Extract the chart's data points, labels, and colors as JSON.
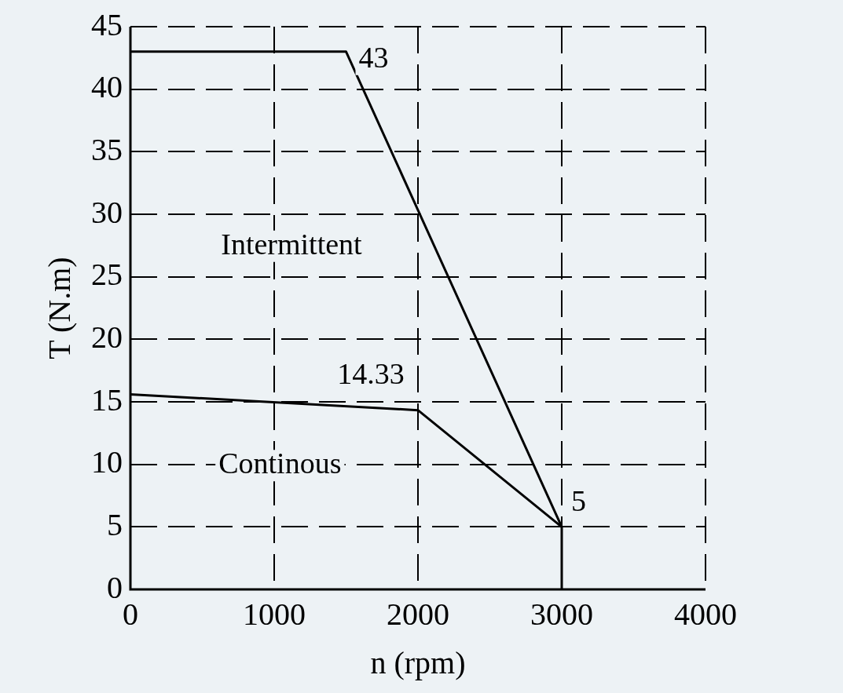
{
  "chart_data": {
    "type": "line",
    "xlabel": "n (rpm)",
    "ylabel": "T (N.m)",
    "xlim": [
      0,
      4000
    ],
    "xticks": [
      0,
      1000,
      2000,
      3000,
      4000
    ],
    "ylim": [
      0,
      45
    ],
    "yticks": [
      0,
      5,
      10,
      15,
      20,
      25,
      30,
      35,
      40,
      45
    ],
    "grid": true,
    "legend": false,
    "marker": "none",
    "line_style": "solid",
    "series": [
      {
        "color": "#000000",
        "x": [
          0,
          1500,
          3000,
          3000
        ],
        "values": [
          43,
          43,
          5,
          0
        ]
      },
      {
        "color": "#000000",
        "x": [
          0,
          2000,
          3000
        ],
        "values": [
          15.6,
          14.33,
          5
        ]
      }
    ],
    "annotations": [
      {
        "text": "43",
        "x": 1500,
        "y": 43
      },
      {
        "text": "14.33",
        "x": 2000,
        "y": 14.33
      },
      {
        "text": "5",
        "x": 3000,
        "y": 5
      },
      "Intermittent",
      "Continous"
    ]
  }
}
